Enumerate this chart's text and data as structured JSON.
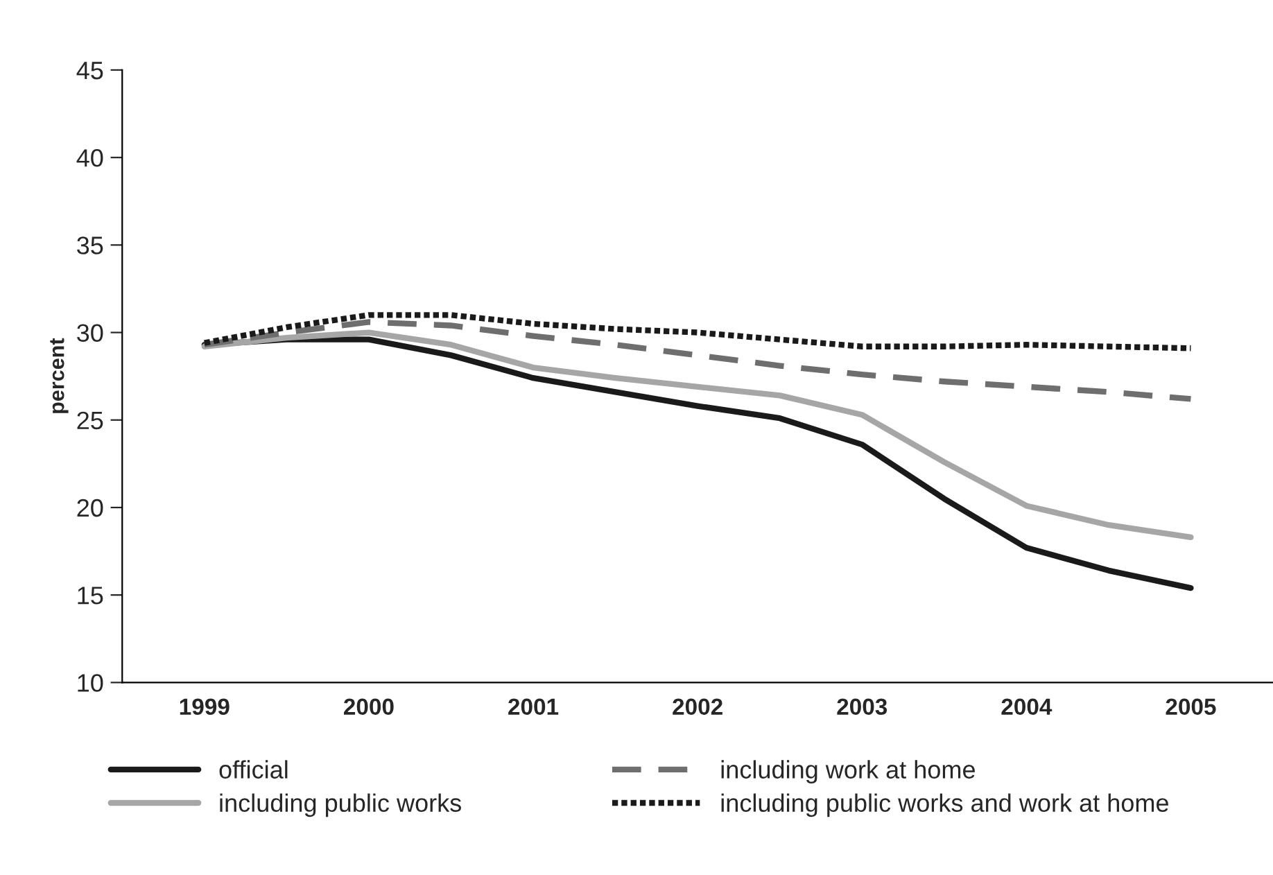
{
  "chart_data": {
    "type": "line",
    "ylabel": "percent",
    "x": [
      1999,
      1999.5,
      2000,
      2000.5,
      2001,
      2001.5,
      2002,
      2002.5,
      2003,
      2003.5,
      2004,
      2004.5,
      2005
    ],
    "series": [
      {
        "name": "official",
        "color": "#1a1a1a",
        "line_style": "solid",
        "values": [
          29.3,
          29.6,
          29.6,
          28.7,
          27.4,
          26.6,
          25.8,
          25.1,
          23.6,
          20.5,
          17.7,
          16.4,
          15.4
        ]
      },
      {
        "name": "including public works",
        "color": "#a6a6a6",
        "line_style": "solid",
        "values": [
          29.2,
          29.7,
          30.0,
          29.3,
          28.0,
          27.4,
          26.9,
          26.4,
          25.3,
          22.6,
          20.1,
          19.0,
          18.3
        ]
      },
      {
        "name": "including work at home",
        "color": "#6e6e6e",
        "line_style": "dashed",
        "values": [
          29.3,
          30.0,
          30.6,
          30.4,
          29.8,
          29.3,
          28.7,
          28.1,
          27.6,
          27.2,
          26.9,
          26.6,
          26.2
        ]
      },
      {
        "name": "including public works and work at home",
        "color": "#1a1a1a",
        "line_style": "dotted",
        "values": [
          29.4,
          30.3,
          31.0,
          31.0,
          30.5,
          30.2,
          30.0,
          29.6,
          29.2,
          29.2,
          29.3,
          29.2,
          29.1
        ]
      }
    ],
    "xlim": [
      1998.5,
      2005.5
    ],
    "xticks": [
      1999,
      2000,
      2001,
      2002,
      2003,
      2004,
      2005
    ],
    "ylim": [
      10,
      45
    ],
    "yticks": [
      10,
      15,
      20,
      25,
      30,
      35,
      40,
      45
    ],
    "grid": false,
    "legend": "bottom"
  }
}
